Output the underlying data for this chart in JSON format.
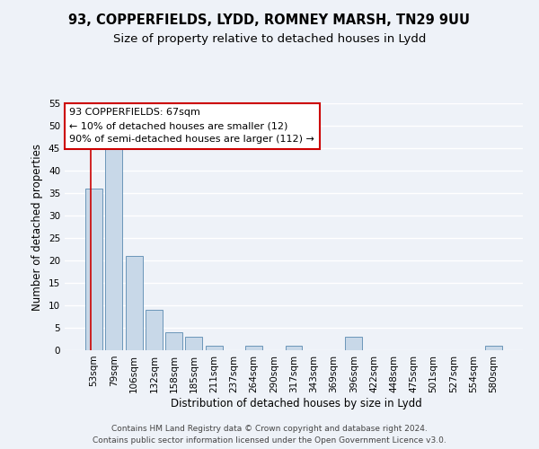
{
  "title_line1": "93, COPPERFIELDS, LYDD, ROMNEY MARSH, TN29 9UU",
  "title_line2": "Size of property relative to detached houses in Lydd",
  "xlabel": "Distribution of detached houses by size in Lydd",
  "ylabel": "Number of detached properties",
  "categories": [
    "53sqm",
    "79sqm",
    "106sqm",
    "132sqm",
    "158sqm",
    "185sqm",
    "211sqm",
    "237sqm",
    "264sqm",
    "290sqm",
    "317sqm",
    "343sqm",
    "369sqm",
    "396sqm",
    "422sqm",
    "448sqm",
    "475sqm",
    "501sqm",
    "527sqm",
    "554sqm",
    "580sqm"
  ],
  "values": [
    36,
    45,
    21,
    9,
    4,
    3,
    1,
    0,
    1,
    0,
    1,
    0,
    0,
    3,
    0,
    0,
    0,
    0,
    0,
    0,
    1
  ],
  "bar_color": "#c8d8e8",
  "bar_edge_color": "#5a8ab0",
  "background_color": "#eef2f8",
  "grid_color": "#ffffff",
  "annotation_box_color": "#ffffff",
  "annotation_border_color": "#cc0000",
  "property_line_color": "#cc0000",
  "annotation_text_line1": "93 COPPERFIELDS: 67sqm",
  "annotation_text_line2": "← 10% of detached houses are smaller (12)",
  "annotation_text_line3": "90% of semi-detached houses are larger (112) →",
  "ylim": [
    0,
    55
  ],
  "yticks": [
    0,
    5,
    10,
    15,
    20,
    25,
    30,
    35,
    40,
    45,
    50,
    55
  ],
  "footer_line1": "Contains HM Land Registry data © Crown copyright and database right 2024.",
  "footer_line2": "Contains public sector information licensed under the Open Government Licence v3.0.",
  "title_fontsize": 10.5,
  "subtitle_fontsize": 9.5,
  "axis_label_fontsize": 8.5,
  "tick_fontsize": 7.5,
  "annotation_fontsize": 8,
  "footer_fontsize": 6.5
}
